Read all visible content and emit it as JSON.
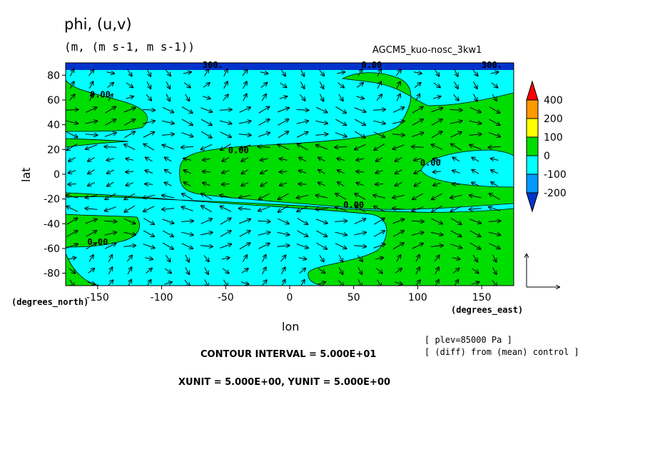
{
  "header": {
    "title": "phi, (u,v)",
    "units": "(m, (m s-1, m s-1))",
    "model": "AGCM5_kuo-nosc_3kw1"
  },
  "footer": {
    "contour_interval": "CONTOUR INTERVAL = 5.000E+01",
    "xy_unit": "XUNIT = 5.000E+00, YUNIT = 5.000E+00",
    "level_note": "[ plev=85000 Pa ]",
    "diff_note": "[ (diff) from (mean) control ]"
  },
  "chart_data": {
    "type": "heatmap",
    "xlabel": "lon",
    "ylabel": "lat",
    "x_unit_label": "(degrees_east)",
    "y_unit_label": "(degrees_north)",
    "xlim": [
      -175,
      175
    ],
    "ylim": [
      -90,
      90
    ],
    "x_ticks": [
      -150,
      -100,
      -50,
      0,
      50,
      100,
      150
    ],
    "y_ticks": [
      80,
      60,
      40,
      20,
      0,
      -20,
      -40,
      -60,
      -80
    ],
    "contour_labels": [
      {
        "text": "0.00",
        "lon": -148,
        "lat": 62
      },
      {
        "text": "0.00",
        "lon": -40,
        "lat": 17
      },
      {
        "text": "0.00",
        "lon": 64,
        "lat": 86
      },
      {
        "text": "0.00",
        "lon": 110,
        "lat": 7
      },
      {
        "text": "0.00",
        "lon": 50,
        "lat": -27
      },
      {
        "text": "0.00",
        "lon": -150,
        "lat": -57
      },
      {
        "text": "300.",
        "lon": -60,
        "lat": 86
      },
      {
        "text": "300.",
        "lon": 158,
        "lat": 86
      }
    ],
    "colorbar": {
      "levels": [
        400,
        200,
        100,
        0,
        -100,
        -200
      ],
      "colors": [
        "#ff0000",
        "#ff9900",
        "#ffff00",
        "#00dd00",
        "#00ffff",
        "#0099ff",
        "#0033cc"
      ]
    },
    "fields": {
      "polar_band_lat_min": 85,
      "green_regions_description_free": true
    },
    "vector_field": {
      "dominant_direction": "westward in tropics, eastward in midlatitudes",
      "reference_vector_present": true
    }
  }
}
